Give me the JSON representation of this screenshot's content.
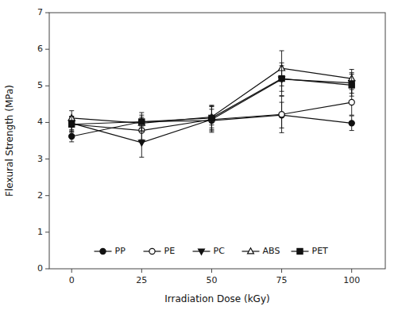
{
  "chart_data": {
    "type": "line",
    "xlabel": "Irradiation Dose (kGy)",
    "ylabel": "Flexural Strength (MPa)",
    "x": [
      0,
      25,
      50,
      75,
      100
    ],
    "series": [
      {
        "name": "PP",
        "color": "#111111",
        "marker": "circle",
        "line_style": "solid",
        "values": [
          3.62,
          4.02,
          4.05,
          4.2,
          3.98
        ],
        "errors": [
          0.15,
          0.12,
          0.12,
          0.35,
          0.2
        ]
      },
      {
        "name": "PE",
        "color": "#111111",
        "marker": "circle-open",
        "line_style": "solid",
        "values": [
          3.95,
          3.78,
          4.08,
          4.22,
          4.55
        ],
        "errors": [
          0.2,
          0.25,
          0.28,
          0.5,
          0.35
        ]
      },
      {
        "name": "PC",
        "color": "#111111",
        "marker": "triangle-down",
        "line_style": "solid",
        "values": [
          3.98,
          3.45,
          4.08,
          5.18,
          5.08
        ],
        "errors": [
          0.18,
          0.4,
          0.35,
          0.45,
          0.28
        ]
      },
      {
        "name": "ABS",
        "color": "#111111",
        "marker": "triangle-up-open",
        "line_style": "solid",
        "values": [
          4.12,
          3.98,
          4.15,
          5.48,
          5.2
        ],
        "errors": [
          0.2,
          0.22,
          0.3,
          0.48,
          0.25
        ]
      },
      {
        "name": "PET",
        "color": "#111111",
        "marker": "square",
        "line_style": "solid",
        "values": [
          3.95,
          4.02,
          4.12,
          5.2,
          5.02
        ],
        "errors": [
          0.22,
          0.25,
          0.35,
          0.35,
          0.3
        ]
      }
    ],
    "xlim": [
      -8,
      112
    ],
    "ylim": [
      0,
      7
    ],
    "xticks": [
      0,
      25,
      50,
      75,
      100
    ],
    "yticks": [
      0,
      1,
      2,
      3,
      4,
      5,
      6,
      7
    ],
    "grid": false,
    "legend": "lower center"
  }
}
